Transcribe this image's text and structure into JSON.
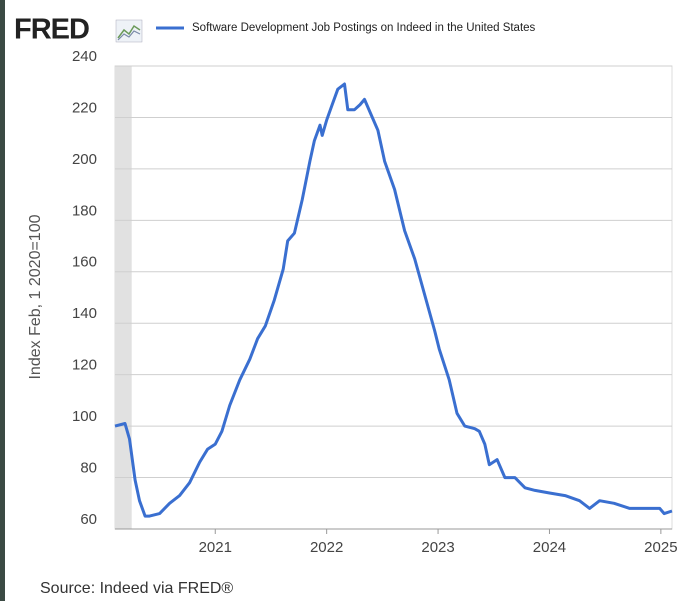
{
  "logo": "FRED",
  "chart_data": {
    "type": "line",
    "y_axis_label": "Index Feb, 1 2020=100",
    "source": "Source: Indeed via FRED®",
    "series": [
      {
        "name": "Software Development Job Postings on Indeed in the United States",
        "color": "#3a6fd0",
        "x": [
          2020.1,
          2020.19,
          2020.23,
          2020.28,
          2020.32,
          2020.37,
          2020.41,
          2020.5,
          2020.59,
          2020.68,
          2020.77,
          2020.86,
          2020.93,
          2021.0,
          2021.06,
          2021.13,
          2021.22,
          2021.31,
          2021.38,
          2021.45,
          2021.53,
          2021.61,
          2021.65,
          2021.71,
          2021.78,
          2021.85,
          2021.89,
          2021.94,
          2021.96,
          2022.0,
          2022.05,
          2022.1,
          2022.16,
          2022.19,
          2022.25,
          2022.3,
          2022.34,
          2022.4,
          2022.46,
          2022.52,
          2022.61,
          2022.7,
          2022.79,
          2022.88,
          2022.97,
          2023.01,
          2023.1,
          2023.17,
          2023.24,
          2023.33,
          2023.37,
          2023.42,
          2023.46,
          2023.53,
          2023.6,
          2023.69,
          2023.78,
          2023.87,
          2024.0,
          2024.14,
          2024.27,
          2024.36,
          2024.45,
          2024.58,
          2024.72,
          2024.85,
          2024.99,
          2025.03,
          2025.1
        ],
        "values": [
          100,
          101,
          95,
          79,
          71,
          65,
          65,
          66,
          70,
          73,
          78,
          86,
          91,
          93,
          98,
          108,
          118,
          126,
          134,
          139,
          149,
          161,
          172,
          175,
          188,
          203,
          211,
          217,
          213,
          219,
          225,
          231,
          233,
          223,
          223,
          225,
          227,
          221,
          215,
          203,
          192,
          176,
          165,
          151,
          137,
          130,
          118,
          105,
          100,
          99,
          98,
          93,
          85,
          87,
          80,
          80,
          76,
          75,
          74,
          73,
          71,
          68,
          71,
          70,
          68,
          68,
          68,
          66,
          67
        ]
      }
    ],
    "shaded_range": [
      2020.1,
      2020.25
    ],
    "xlim": [
      2020.1,
      2025.1
    ],
    "xticks": [
      2021,
      2022,
      2023,
      2024,
      2025
    ],
    "ylim": [
      60,
      240
    ],
    "yticks": [
      60,
      80,
      100,
      120,
      140,
      160,
      180,
      200,
      220,
      240
    ],
    "grid": true
  }
}
